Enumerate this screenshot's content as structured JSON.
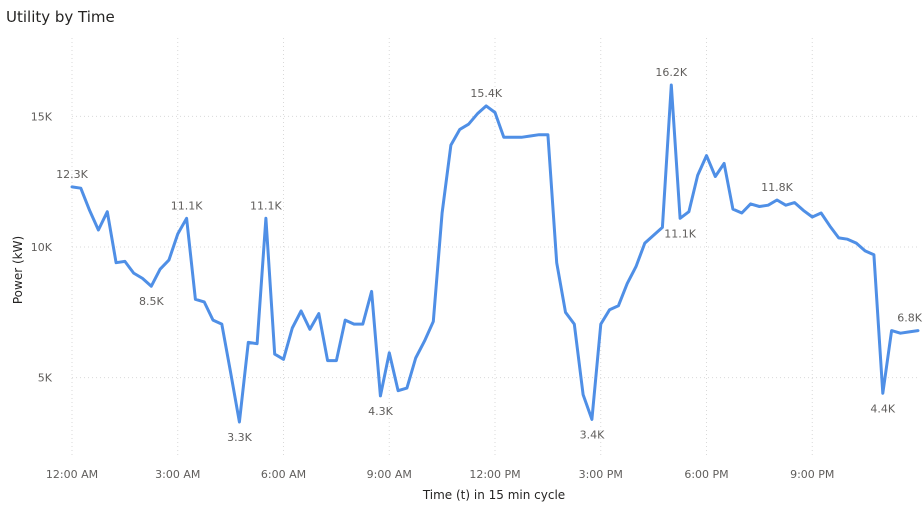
{
  "chart_data": {
    "type": "line",
    "title": "Utility by Time",
    "xlabel": "Time (t) in 15 min cycle",
    "ylabel": "Power (kW)",
    "ylim": [
      2000,
      18000
    ],
    "grid": true,
    "legend": "none",
    "line_color": "#4f8fe6",
    "x_ticks": [
      {
        "label": "12:00 AM",
        "slot": 0
      },
      {
        "label": "3:00 AM",
        "slot": 12
      },
      {
        "label": "6:00 AM",
        "slot": 24
      },
      {
        "label": "9:00 AM",
        "slot": 36
      },
      {
        "label": "12:00 PM",
        "slot": 48
      },
      {
        "label": "3:00 PM",
        "slot": 60
      },
      {
        "label": "6:00 PM",
        "slot": 72
      },
      {
        "label": "9:00 PM",
        "slot": 84
      }
    ],
    "y_ticks": [
      {
        "label": "5K",
        "value": 5000
      },
      {
        "label": "10K",
        "value": 10000
      },
      {
        "label": "15K",
        "value": 15000
      }
    ],
    "series": [
      {
        "values": [
          12300,
          12250,
          11400,
          10650,
          11350,
          9400,
          9450,
          9000,
          8800,
          8500,
          9150,
          9500,
          10500,
          11100,
          8000,
          7900,
          7200,
          7050,
          5200,
          3300,
          6350,
          6300,
          11100,
          5900,
          5700,
          6900,
          7550,
          6850,
          7450,
          5650,
          5650,
          7200,
          7050,
          7050,
          8300,
          4300,
          5950,
          4500,
          4600,
          5750,
          6400,
          7150,
          11300,
          13900,
          14500,
          14700,
          15100,
          15400,
          15150,
          14200,
          14200,
          14200,
          14250,
          14300,
          14300,
          9400,
          7500,
          7050,
          4350,
          3400,
          7050,
          7600,
          7750,
          8600,
          9250,
          10150,
          10450,
          10750,
          16200,
          11100,
          11350,
          12750,
          13500,
          12700,
          13200,
          11450,
          11300,
          11650,
          11550,
          11600,
          11800,
          11600,
          11700,
          11400,
          11150,
          11300,
          10800,
          10350,
          10300,
          10150,
          9850,
          9700,
          4400,
          6800,
          6700,
          6750,
          6800
        ]
      }
    ],
    "annotations": [
      {
        "index": 0,
        "text": "12.3K",
        "pos": "above"
      },
      {
        "index": 9,
        "text": "8.5K",
        "pos": "below"
      },
      {
        "index": 13,
        "text": "11.1K",
        "pos": "above"
      },
      {
        "index": 19,
        "text": "3.3K",
        "pos": "below"
      },
      {
        "index": 22,
        "text": "11.1K",
        "pos": "above"
      },
      {
        "index": 35,
        "text": "4.3K",
        "pos": "below"
      },
      {
        "index": 47,
        "text": "15.4K",
        "pos": "above"
      },
      {
        "index": 59,
        "text": "3.4K",
        "pos": "below"
      },
      {
        "index": 68,
        "text": "16.2K",
        "pos": "above"
      },
      {
        "index": 69,
        "text": "11.1K",
        "pos": "below"
      },
      {
        "index": 80,
        "text": "11.8K",
        "pos": "above"
      },
      {
        "index": 92,
        "text": "4.4K",
        "pos": "below"
      },
      {
        "index": 96,
        "text": "6.8K",
        "pos": "above"
      }
    ]
  }
}
